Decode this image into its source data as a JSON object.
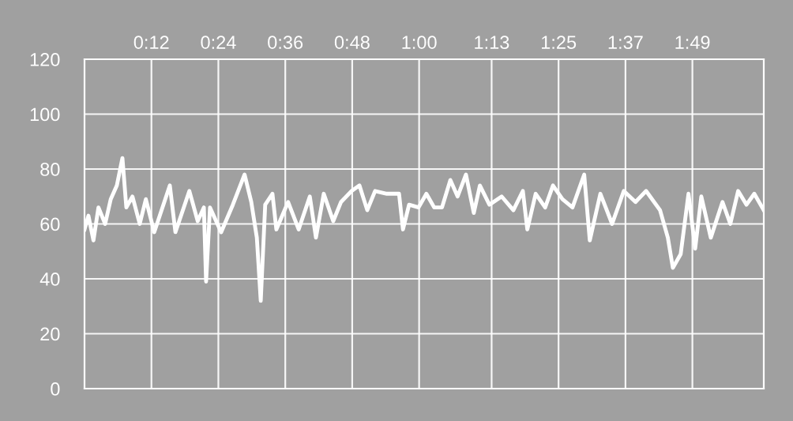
{
  "chart_data": {
    "type": "line",
    "x": [
      0,
      0.7,
      1.6,
      2.5,
      3.7,
      4.7,
      5.8,
      6.8,
      7.5,
      8.6,
      9.9,
      11.0,
      12.5,
      15.3,
      16.3,
      18.8,
      20.3,
      21.4,
      21.8,
      22.5,
      24.5,
      26.6,
      28.7,
      29.9,
      30.9,
      31.6,
      32.4,
      33.7,
      34.4,
      36.5,
      38.4,
      40.4,
      41.5,
      42.9,
      44.6,
      46.0,
      47.9,
      49.3,
      50.7,
      52.1,
      54.2,
      56.4,
      57.1,
      58.2,
      59.9,
      61.3,
      62.7,
      64.1,
      65.6,
      66.9,
      68.4,
      69.8,
      70.9,
      72.6,
      74.8,
      76.9,
      78.6,
      79.4,
      80.9,
      82.6,
      84.0,
      85.7,
      87.5,
      89.6,
      90.6,
      92.5,
      94.6,
      96.7,
      98.8,
      100.7,
      103.2,
      104.6,
      105.5,
      106.9,
      108.3,
      109.5,
      110.6,
      112.3,
      114.4,
      115.8,
      117.2,
      118.7,
      120.1,
      121.8
    ],
    "series": [
      {
        "color": "#ffffff",
        "values": [
          58,
          63,
          54,
          66,
          60,
          69,
          74,
          84,
          66,
          70,
          60,
          69,
          57,
          74,
          57,
          72,
          61,
          66,
          39,
          66,
          57,
          67,
          78,
          68,
          55,
          32,
          67,
          71,
          58,
          68,
          58,
          70,
          55,
          71,
          61,
          68,
          72,
          74,
          65,
          72,
          71,
          71,
          58,
          67,
          66,
          71,
          66,
          66,
          76,
          70,
          78,
          64,
          74,
          67,
          70,
          65,
          72,
          58,
          71,
          66,
          74,
          69,
          66,
          78,
          54,
          71,
          60,
          72,
          68,
          72,
          65,
          55,
          44,
          49,
          71,
          51,
          70,
          55,
          68,
          60,
          72,
          67,
          71,
          65
        ]
      }
    ],
    "xlim": [
      0,
      121.8
    ],
    "xticks": [
      {
        "value": 12,
        "label": "0:12"
      },
      {
        "value": 24,
        "label": "0:24"
      },
      {
        "value": 36,
        "label": "0:36"
      },
      {
        "value": 48,
        "label": "0:48"
      },
      {
        "value": 60,
        "label": "1:00"
      },
      {
        "value": 73,
        "label": "1:13"
      },
      {
        "value": 85,
        "label": "1:25"
      },
      {
        "value": 97,
        "label": "1:37"
      },
      {
        "value": 109,
        "label": "1:49"
      }
    ],
    "ylim": [
      0,
      120
    ],
    "yticks": [
      0,
      20,
      40,
      60,
      80,
      100,
      120
    ],
    "grid": true,
    "marker": "none",
    "line_style": "solid"
  }
}
